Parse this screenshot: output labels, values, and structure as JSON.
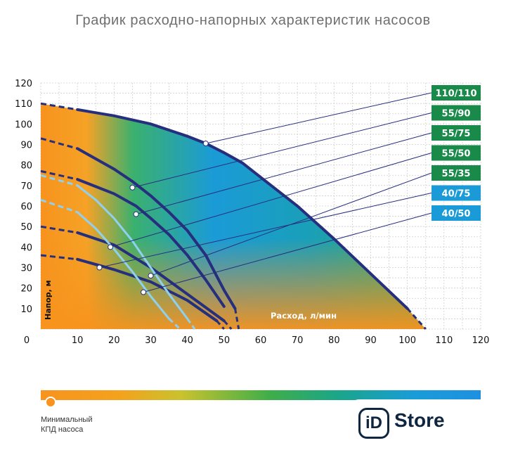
{
  "chart_data": {
    "type": "line",
    "title": "График расходно-напорных характеристик насосов",
    "xlabel": "Расход, л/мин",
    "ylabel": "Напор, м",
    "xlim": [
      0,
      120
    ],
    "ylim": [
      0,
      120
    ],
    "x_ticks": [
      0,
      10,
      20,
      30,
      40,
      50,
      60,
      70,
      80,
      90,
      100,
      110,
      120
    ],
    "y_ticks": [
      10,
      20,
      30,
      40,
      50,
      60,
      70,
      80,
      90,
      100,
      110,
      120
    ],
    "grid": true,
    "series": [
      {
        "name": "110/110",
        "points": [
          [
            0,
            110
          ],
          [
            10,
            107
          ],
          [
            20,
            104
          ],
          [
            30,
            100
          ],
          [
            40,
            94
          ],
          [
            45,
            90.5
          ],
          [
            50,
            86
          ],
          [
            55,
            81
          ],
          [
            60,
            74
          ],
          [
            70,
            60
          ],
          [
            80,
            44
          ],
          [
            90,
            27
          ],
          [
            100,
            10
          ],
          [
            105,
            0
          ]
        ],
        "marker": [
          45,
          90.5
        ]
      },
      {
        "name": "55/90",
        "points": [
          [
            0,
            93
          ],
          [
            10,
            88
          ],
          [
            20,
            78
          ],
          [
            25,
            72
          ],
          [
            30,
            65
          ],
          [
            35,
            57
          ],
          [
            40,
            48
          ],
          [
            45,
            36
          ],
          [
            50,
            19
          ],
          [
            53,
            10
          ],
          [
            54,
            0
          ]
        ],
        "marker": [
          25,
          69
        ]
      },
      {
        "name": "55/75",
        "points": [
          [
            0,
            77
          ],
          [
            10,
            73
          ],
          [
            20,
            66
          ],
          [
            26,
            60
          ],
          [
            30,
            54
          ],
          [
            35,
            46
          ],
          [
            40,
            36
          ],
          [
            45,
            24
          ],
          [
            50,
            11
          ],
          [
            53,
            0
          ]
        ],
        "marker": [
          26,
          56
        ]
      },
      {
        "name": "55/50",
        "points": [
          [
            0,
            50
          ],
          [
            10,
            47
          ],
          [
            20,
            41
          ],
          [
            30,
            30
          ],
          [
            40,
            17
          ],
          [
            50,
            4
          ],
          [
            52,
            0
          ]
        ],
        "marker": [
          19,
          40
        ]
      },
      {
        "name": "55/35",
        "points": [
          [
            0,
            36
          ],
          [
            10,
            34
          ],
          [
            20,
            29
          ],
          [
            30,
            23
          ],
          [
            40,
            14
          ],
          [
            48,
            4
          ],
          [
            50,
            0
          ]
        ],
        "marker": [
          30,
          26
        ]
      },
      {
        "name": "40/75",
        "points": [
          [
            0,
            75
          ],
          [
            10,
            70
          ],
          [
            15,
            63
          ],
          [
            20,
            54
          ],
          [
            25,
            43
          ],
          [
            30,
            30
          ],
          [
            35,
            17
          ],
          [
            40,
            5
          ],
          [
            42,
            0
          ]
        ],
        "marker": [
          16,
          30
        ]
      },
      {
        "name": "40/50",
        "points": [
          [
            0,
            63
          ],
          [
            10,
            57
          ],
          [
            15,
            49
          ],
          [
            20,
            39
          ],
          [
            25,
            28
          ],
          [
            30,
            16
          ],
          [
            35,
            5
          ],
          [
            38,
            0
          ]
        ],
        "marker": [
          28,
          18
        ]
      }
    ],
    "model_labels": [
      {
        "text": "110/110",
        "color": "#1a8a4a"
      },
      {
        "text": "55/90",
        "color": "#1a8a4a"
      },
      {
        "text": "55/75",
        "color": "#1a8a4a"
      },
      {
        "text": "55/50",
        "color": "#1a8a4a"
      },
      {
        "text": "55/35",
        "color": "#1a8a4a"
      },
      {
        "text": "40/75",
        "color": "#1a9bd7"
      },
      {
        "text": "40/50",
        "color": "#1a9bd7"
      }
    ],
    "colors": {
      "dark_curve": "#262f7e",
      "light_curve": "#8fd0ef",
      "hot": "#f7931e",
      "cool": "#1a9bd7"
    }
  },
  "legend": {
    "min_label_line1": "Минимальный",
    "min_label_line2": "КПД насоса"
  },
  "brand": {
    "mark": "iD",
    "name": "Store"
  }
}
